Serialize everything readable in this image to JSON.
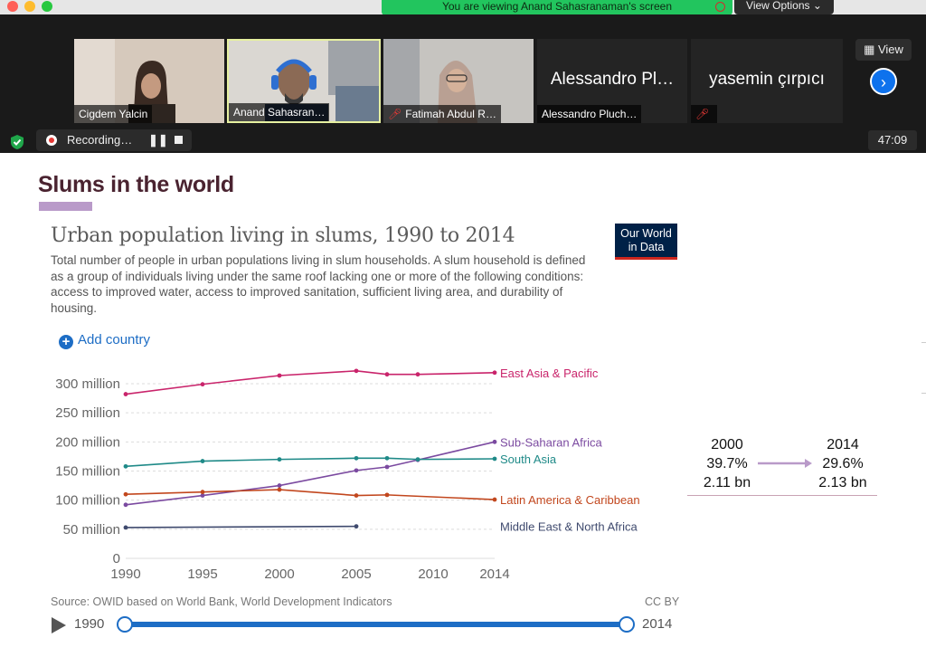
{
  "zoom": {
    "sharing_banner": "You are viewing Anand Sahasranaman's screen",
    "view_options": "View Options",
    "participants": [
      {
        "label": "Cigdem Yalcin",
        "muted": false
      },
      {
        "label": "Anand Sahasran…",
        "muted": false
      },
      {
        "label": "Fatimah Abdul R…",
        "muted": true
      },
      {
        "label": "Alessandro Pluch…",
        "display": "Alessandro Pl…",
        "muted": false
      },
      {
        "label": "",
        "display": "yasemin çırpıcı",
        "muted": true
      }
    ],
    "view_button": "View",
    "recording_label": "Recording…",
    "timer": "47:09"
  },
  "slide": {
    "title": "Slums in the world"
  },
  "chart_header": {
    "title": "Urban population living in slums, 1990 to 2014",
    "subtitle": "Total number of people in urban populations living in slum households. A slum household is defined as a group of individuals living under the same roof lacking one or more of the following conditions: access to improved water, access to improved sanitation, sufficient living area, and durability of housing.",
    "logo_line1": "Our World",
    "logo_line2": "in Data",
    "add_country": "Add country",
    "source": "Source: OWID based on World Bank, World Development Indicators",
    "license": "CC BY"
  },
  "summary": {
    "start_year": "2000",
    "start_share": "39.7%",
    "start_total": "2.11 bn",
    "end_year": "2014",
    "end_share": "29.6%",
    "end_total": "2.13 bn"
  },
  "timeline": {
    "start": "1990",
    "end": "2014"
  },
  "colors": {
    "accent": "#1d6dc5",
    "title": "#4a2330"
  },
  "chart_data": {
    "type": "line",
    "xlim": [
      1990,
      2014
    ],
    "ylim": [
      0,
      300
    ],
    "x_ticks": [
      1990,
      1995,
      2000,
      2005,
      2010,
      2014
    ],
    "y_ticks": [
      0,
      50,
      100,
      150,
      200,
      250,
      300
    ],
    "y_tick_labels": [
      "0",
      "50 million",
      "100 million",
      "150 million",
      "200 million",
      "250 million",
      "300 million"
    ],
    "grid": true,
    "series": [
      {
        "name": "East Asia & Pacific",
        "color": "#c9246b",
        "x": [
          1990,
          1995,
          2000,
          2005,
          2007,
          2009,
          2014
        ],
        "y": [
          282,
          299,
          314,
          322,
          316,
          316,
          319
        ]
      },
      {
        "name": "Sub-Saharan Africa",
        "color": "#7b4aa0",
        "x": [
          1990,
          1995,
          2000,
          2005,
          2007,
          2009,
          2014
        ],
        "y": [
          92,
          108,
          125,
          151,
          157,
          169,
          200
        ]
      },
      {
        "name": "South Asia",
        "color": "#1f8a88",
        "x": [
          1990,
          1995,
          2000,
          2005,
          2007,
          2009,
          2014
        ],
        "y": [
          158,
          167,
          170,
          172,
          172,
          170,
          171
        ]
      },
      {
        "name": "Latin America & Caribbean",
        "color": "#c2471e",
        "x": [
          1990,
          1995,
          2000,
          2005,
          2007,
          2014
        ],
        "y": [
          110,
          114,
          118,
          108,
          109,
          101
        ]
      },
      {
        "name": "Middle East & North Africa",
        "color": "#3f4a6e",
        "x": [
          1990,
          2005
        ],
        "y": [
          53,
          55
        ]
      }
    ]
  }
}
